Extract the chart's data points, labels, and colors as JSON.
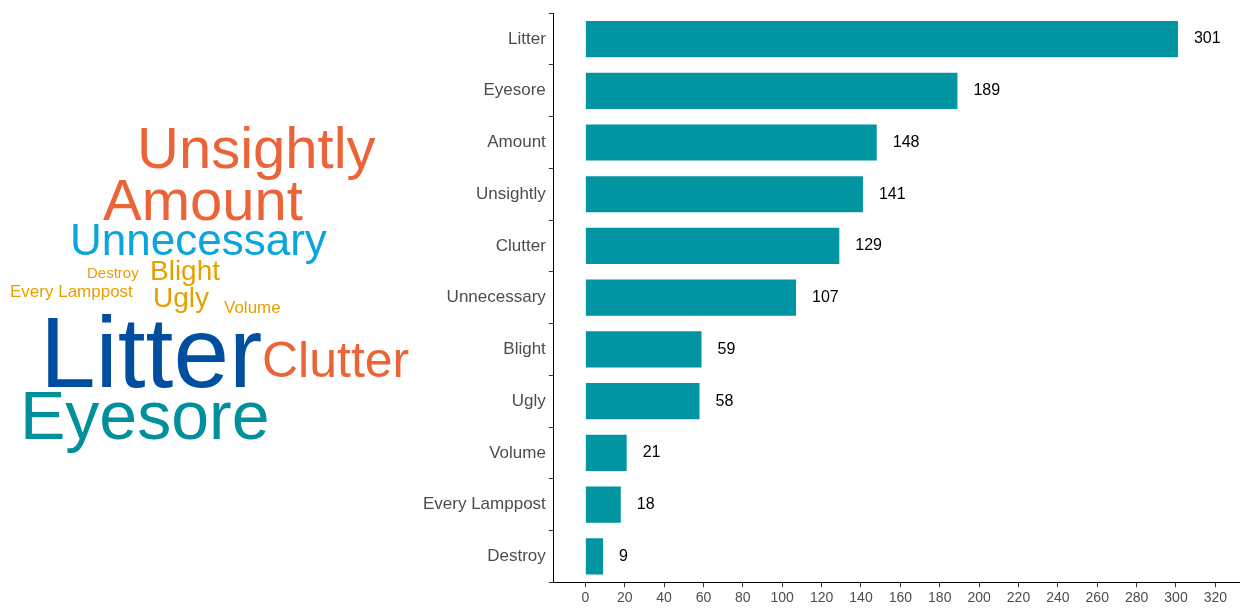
{
  "chart_data": [
    {
      "type": "other",
      "annotations": [
        "Unsightly",
        "Amount",
        "Unnecessary",
        "Destroy",
        "Blight",
        "Every Lamppost",
        "Ugly",
        "Volume",
        "Litter",
        "Clutter",
        "Eyesore"
      ]
    },
    {
      "type": "bar",
      "orientation": "horizontal",
      "categories": [
        "Litter",
        "Eyesore",
        "Amount",
        "Unsightly",
        "Clutter",
        "Unnecessary",
        "Blight",
        "Ugly",
        "Volume",
        "Every Lamppost",
        "Destroy"
      ],
      "values": [
        301,
        189,
        148,
        141,
        129,
        107,
        59,
        58,
        21,
        18,
        9
      ],
      "color": "#0095a0",
      "xlim": [
        -16,
        332
      ],
      "xticks": [
        0,
        20,
        40,
        60,
        80,
        100,
        120,
        140,
        160,
        180,
        200,
        220,
        240,
        260,
        280,
        300,
        320
      ],
      "data_labels": true,
      "grid": false,
      "legend": false
    }
  ]
}
